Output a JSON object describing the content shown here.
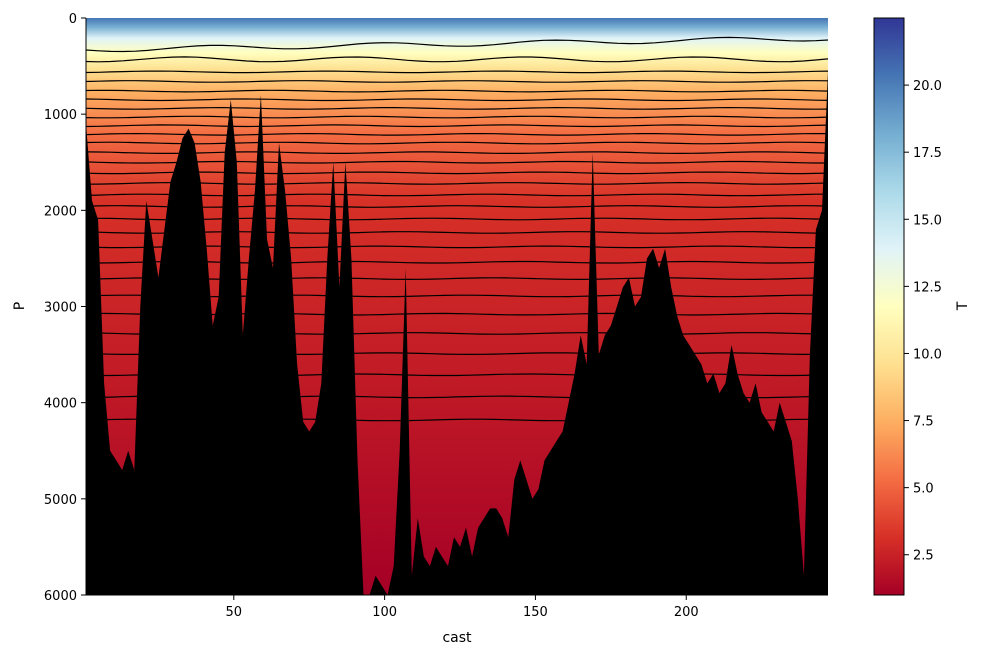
{
  "chart_data": {
    "type": "heatmap",
    "title": "",
    "xlabel": "cast",
    "ylabel": "P",
    "colorbar_label": "T",
    "xlim": [
      1,
      247
    ],
    "ylim": [
      6000,
      0
    ],
    "x_ticks": [
      50,
      100,
      150,
      200
    ],
    "y_ticks": [
      0,
      1000,
      2000,
      3000,
      4000,
      5000,
      6000
    ],
    "colorbar_range": [
      1.0,
      22.5
    ],
    "colorbar_ticks": [
      2.5,
      5.0,
      7.5,
      10.0,
      12.5,
      15.0,
      17.5,
      20.0
    ],
    "colormap": "RdYlBu",
    "colormap_stops": [
      "#a50026",
      "#d73027",
      "#f46d43",
      "#fdae61",
      "#fee090",
      "#ffffbf",
      "#e0f3f8",
      "#abd9e9",
      "#74add1",
      "#4575b4",
      "#313695"
    ],
    "contours": {
      "color": "#000000",
      "start": 2.0,
      "step": 1.0
    },
    "bathymetry_color": "#000000",
    "bathymetry": {
      "cast": [
        1,
        3,
        5,
        7,
        9,
        11,
        13,
        15,
        17,
        19,
        21,
        23,
        25,
        27,
        29,
        31,
        33,
        35,
        37,
        39,
        41,
        43,
        45,
        47,
        49,
        51,
        53,
        55,
        57,
        59,
        61,
        63,
        65,
        67,
        69,
        71,
        73,
        75,
        77,
        79,
        81,
        83,
        85,
        87,
        89,
        91,
        93,
        95,
        97,
        99,
        101,
        103,
        105,
        107,
        109,
        111,
        113,
        115,
        117,
        119,
        121,
        123,
        125,
        127,
        129,
        131,
        133,
        135,
        137,
        139,
        141,
        143,
        145,
        147,
        149,
        151,
        153,
        155,
        157,
        159,
        161,
        163,
        165,
        167,
        169,
        171,
        173,
        175,
        177,
        179,
        181,
        183,
        185,
        187,
        189,
        191,
        193,
        195,
        197,
        199,
        201,
        203,
        205,
        207,
        209,
        211,
        213,
        215,
        217,
        219,
        221,
        223,
        225,
        227,
        229,
        231,
        233,
        235,
        237,
        239,
        241,
        243,
        245,
        247
      ],
      "depth": [
        1100,
        1900,
        2100,
        3800,
        4500,
        4600,
        4700,
        4500,
        4700,
        3000,
        1900,
        2300,
        2700,
        2200,
        1700,
        1500,
        1250,
        1150,
        1300,
        1700,
        2400,
        3200,
        2900,
        1400,
        850,
        1500,
        3300,
        2500,
        1800,
        800,
        2300,
        2600,
        1300,
        1800,
        2500,
        3600,
        4200,
        4300,
        4200,
        3800,
        2500,
        1500,
        2800,
        1500,
        2500,
        4600,
        6000,
        6000,
        5800,
        5900,
        6000,
        5700,
        4500,
        2600,
        5800,
        5200,
        5600,
        5700,
        5500,
        5600,
        5700,
        5400,
        5500,
        5300,
        5600,
        5300,
        5200,
        5100,
        5100,
        5200,
        5400,
        4800,
        4600,
        4800,
        5000,
        4900,
        4600,
        4500,
        4400,
        4300,
        4000,
        3700,
        3300,
        3600,
        1400,
        3500,
        3300,
        3200,
        3000,
        2800,
        2700,
        3000,
        2900,
        2500,
        2400,
        2600,
        2400,
        2800,
        3100,
        3300,
        3400,
        3500,
        3600,
        3800,
        3700,
        3900,
        3800,
        3400,
        3700,
        3900,
        4000,
        3800,
        4100,
        4200,
        4300,
        4000,
        4200,
        4400,
        5000,
        5800,
        3500,
        2200,
        2000,
        550
      ]
    }
  }
}
